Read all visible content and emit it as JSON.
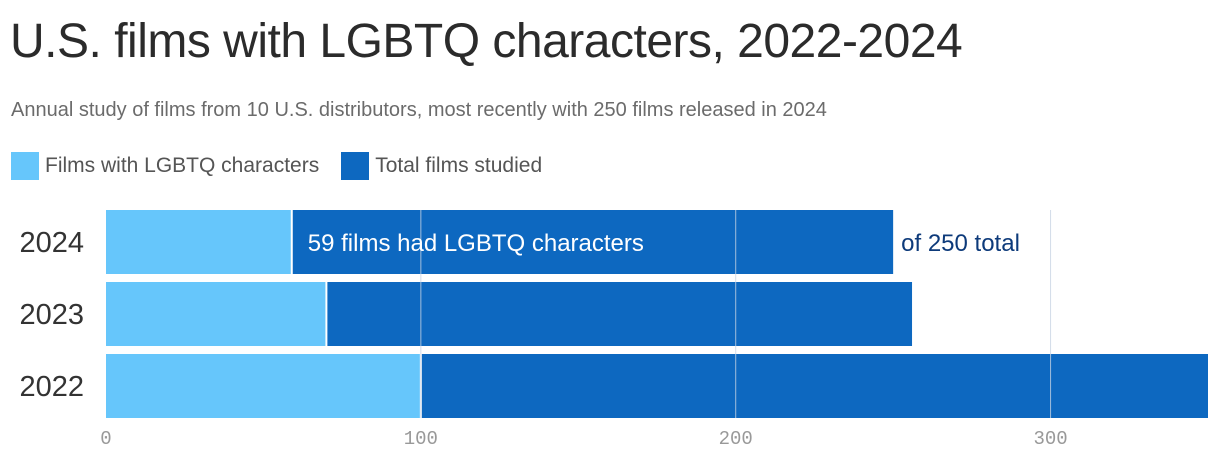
{
  "header": {
    "title": "U.S. films with LGBTQ characters, 2022-2024",
    "subtitle": "Annual study of films from 10 U.S. distributors, most recently with 250 films released in 2024"
  },
  "colors": {
    "lgbtq": "#66c6fb",
    "total": "#0d68c0",
    "grid": "#c8d4e4",
    "annotation_outside": "#0d3a7a"
  },
  "chart_data": {
    "type": "bar",
    "orientation": "horizontal",
    "layout": "overlapping",
    "categories": [
      "2024",
      "2023",
      "2022"
    ],
    "series": [
      {
        "name": "Films with LGBTQ characters",
        "values": [
          59,
          70,
          100
        ]
      },
      {
        "name": "Total films studied",
        "values": [
          250,
          256,
          350
        ]
      }
    ],
    "xlim": [
      0,
      350
    ],
    "xticks": [
      0,
      100,
      200,
      300
    ],
    "grid": true,
    "legend_position": "top-left",
    "annotations": [
      {
        "category": "2024",
        "inside_text": "59 films had LGBTQ characters",
        "outside_text": "of 250 total"
      }
    ]
  }
}
